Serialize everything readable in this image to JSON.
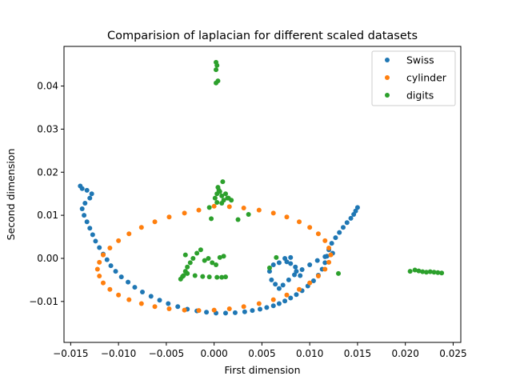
{
  "chart_data": {
    "type": "scatter",
    "title": "Comparision of laplacian for different scaled datasets",
    "xlabel": "First dimension",
    "ylabel": "Second dimension",
    "xlim": [
      -0.0157,
      0.0258
    ],
    "ylim": [
      -0.0195,
      0.0492
    ],
    "xticks": [
      -0.015,
      -0.01,
      -0.005,
      0.0,
      0.005,
      0.01,
      0.015,
      0.02,
      0.025
    ],
    "xtick_labels": [
      "−0.015",
      "−0.010",
      "−0.005",
      "0.000",
      "0.005",
      "0.010",
      "0.015",
      "0.020",
      "0.025"
    ],
    "yticks": [
      -0.01,
      0.0,
      0.01,
      0.02,
      0.03,
      0.04
    ],
    "ytick_labels": [
      "−0.01",
      "0.00",
      "0.01",
      "0.02",
      "0.03",
      "0.04"
    ],
    "grid": false,
    "legend_position": "top-right",
    "series": [
      {
        "name": "Swiss",
        "color": "#1f77b4",
        "x": [
          -0.014,
          -0.0138,
          -0.0133,
          -0.0128,
          -0.013,
          -0.0135,
          -0.0138,
          -0.0136,
          -0.0133,
          -0.013,
          -0.0127,
          -0.0124,
          -0.012,
          -0.0116,
          -0.0112,
          -0.0108,
          -0.0103,
          -0.0097,
          -0.009,
          -0.0083,
          -0.0075,
          -0.0066,
          -0.0057,
          -0.0048,
          -0.0038,
          -0.0028,
          -0.0018,
          -0.0008,
          0.0002,
          0.0012,
          0.0022,
          0.0032,
          0.004,
          0.0048,
          0.0055,
          0.0062,
          0.0068,
          0.0074,
          0.008,
          0.0086,
          0.0092,
          0.0098,
          0.0104,
          0.0109,
          0.0113,
          0.0116,
          0.0118,
          0.012,
          0.0123,
          0.0127,
          0.0131,
          0.0135,
          0.0139,
          0.0143,
          0.0146,
          0.0148,
          0.015,
          0.0124,
          0.0116,
          0.0108,
          0.01,
          0.0092,
          0.0084,
          0.0078,
          0.0072,
          0.0068,
          0.0064,
          0.006,
          0.0058,
          0.0062,
          0.0068,
          0.0074,
          0.008,
          0.0086,
          0.009,
          0.0085,
          0.008,
          0.0076
        ],
        "y": [
          0.0168,
          0.0162,
          0.0158,
          0.015,
          0.014,
          0.0128,
          0.0115,
          0.01,
          0.0085,
          0.007,
          0.0055,
          0.004,
          0.0025,
          0.001,
          -0.0003,
          -0.0017,
          -0.003,
          -0.0043,
          -0.0055,
          -0.0067,
          -0.0078,
          -0.0088,
          -0.0097,
          -0.0105,
          -0.0112,
          -0.0118,
          -0.0122,
          -0.0125,
          -0.0127,
          -0.0127,
          -0.0126,
          -0.0124,
          -0.0121,
          -0.0118,
          -0.0114,
          -0.011,
          -0.0105,
          -0.0099,
          -0.0092,
          -0.0084,
          -0.0075,
          -0.0064,
          -0.0052,
          -0.0039,
          -0.0025,
          -0.001,
          0.0005,
          0.002,
          0.0035,
          0.0048,
          0.006,
          0.0072,
          0.0083,
          0.0093,
          0.0102,
          0.011,
          0.0118,
          0.0012,
          0.0004,
          -0.0005,
          -0.0015,
          -0.0026,
          -0.0038,
          -0.005,
          -0.0062,
          -0.007,
          -0.006,
          -0.005,
          -0.003,
          -0.0015,
          -0.001,
          0.0,
          -0.0012,
          -0.003,
          -0.004,
          -0.002,
          0.0002,
          -0.0008
        ]
      },
      {
        "name": "cylinder",
        "color": "#ff7f0e",
        "x": [
          0.0,
          0.0016,
          0.0031,
          0.0047,
          0.0062,
          0.0076,
          0.0089,
          0.01,
          0.0109,
          0.0116,
          0.012,
          0.0122,
          0.012,
          0.0116,
          0.0109,
          0.01,
          0.0089,
          0.0076,
          0.0062,
          0.0047,
          0.0031,
          0.0016,
          0.0,
          -0.0016,
          -0.0031,
          -0.0047,
          -0.0062,
          -0.0076,
          -0.0089,
          -0.01,
          -0.0109,
          -0.0116,
          -0.012,
          -0.0122,
          -0.012,
          -0.0116,
          -0.0109,
          -0.01,
          -0.0089,
          -0.0076,
          -0.0062,
          -0.0047,
          -0.0031,
          -0.0016
        ],
        "y": [
          0.0121,
          0.012,
          0.0117,
          0.0112,
          0.0105,
          0.0096,
          0.0085,
          0.0072,
          0.0057,
          0.0041,
          0.0024,
          0.0008,
          -0.0009,
          -0.0025,
          -0.0041,
          -0.0057,
          -0.0072,
          -0.0085,
          -0.0096,
          -0.0105,
          -0.0112,
          -0.0117,
          -0.012,
          -0.0121,
          -0.012,
          -0.0117,
          -0.0112,
          -0.0105,
          -0.0096,
          -0.0085,
          -0.0072,
          -0.0057,
          -0.0041,
          -0.0025,
          -0.0009,
          0.0008,
          0.0024,
          0.0041,
          0.0057,
          0.0072,
          0.0085,
          0.0096,
          0.0105,
          0.0112
        ]
      },
      {
        "name": "digits",
        "color": "#2ca02c",
        "x": [
          0.0002,
          0.0003,
          0.0002,
          0.0004,
          0.0002,
          0.0003,
          0.0001,
          0.0003,
          0.0005,
          0.0008,
          0.001,
          0.0006,
          0.0012,
          0.0014,
          0.0009,
          0.0004,
          0.0015,
          0.0018,
          0.0008,
          -0.0005,
          -0.0003,
          0.0025,
          0.0036,
          -0.0035,
          -0.0032,
          -0.003,
          -0.0028,
          -0.0025,
          -0.0022,
          -0.0018,
          -0.0014,
          -0.001,
          -0.0006,
          -0.0002,
          0.0002,
          0.0006,
          0.001,
          -0.0033,
          -0.0028,
          -0.002,
          -0.0012,
          -0.0005,
          0.0003,
          0.0008,
          0.0012,
          -0.003,
          0.0058,
          0.0065,
          0.013,
          0.0205,
          0.021,
          0.0214,
          0.0218,
          0.0222,
          0.0226,
          0.023,
          0.0234,
          0.0238
        ],
        "y": [
          0.0455,
          0.0448,
          0.0438,
          0.0412,
          0.0407,
          0.015,
          0.014,
          0.013,
          0.0158,
          0.0145,
          0.0135,
          0.0155,
          0.015,
          0.014,
          0.0178,
          0.0165,
          0.014,
          0.0135,
          0.0128,
          0.0118,
          0.0092,
          0.009,
          0.0102,
          -0.0048,
          -0.004,
          -0.003,
          -0.002,
          -0.001,
          0.0,
          0.0012,
          0.002,
          -0.0005,
          0.0,
          -0.001,
          -0.0015,
          0.0002,
          0.0005,
          -0.0042,
          -0.0035,
          -0.004,
          -0.0042,
          -0.0043,
          -0.0044,
          -0.0044,
          -0.0043,
          0.0008,
          -0.0022,
          0.0002,
          -0.0035,
          -0.003,
          -0.0027,
          -0.0029,
          -0.0031,
          -0.0032,
          -0.0031,
          -0.0032,
          -0.0033,
          -0.0034
        ]
      }
    ]
  }
}
